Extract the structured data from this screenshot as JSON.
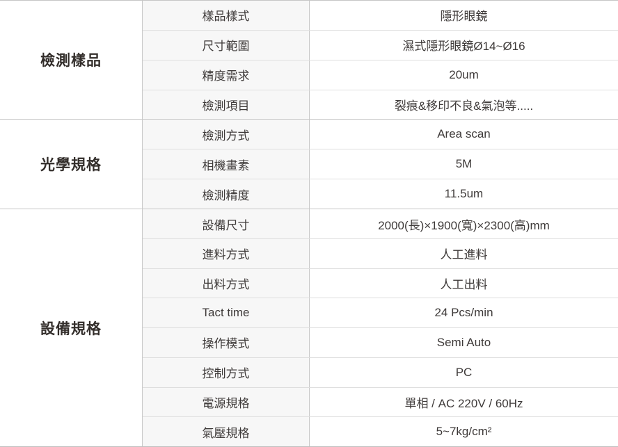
{
  "table": {
    "sections": [
      {
        "category": "檢測樣品",
        "rows": [
          {
            "label": "樣品樣式",
            "value": "隱形眼鏡"
          },
          {
            "label": "尺寸範圍",
            "value": "濕式隱形眼鏡Ø14~Ø16"
          },
          {
            "label": "精度需求",
            "value": "20um"
          },
          {
            "label": "檢測項目",
            "value": "裂痕&移印不良&氣泡等....."
          }
        ]
      },
      {
        "category": "光學規格",
        "rows": [
          {
            "label": "檢測方式",
            "value": "Area scan"
          },
          {
            "label": "相機畫素",
            "value": "5M"
          },
          {
            "label": "檢測精度",
            "value": "11.5um"
          }
        ]
      },
      {
        "category": "設備規格",
        "rows": [
          {
            "label": "設備尺寸",
            "value": "2000(長)×1900(寬)×2300(高)mm"
          },
          {
            "label": "進料方式",
            "value": "人工進料"
          },
          {
            "label": "出料方式",
            "value": "人工出料"
          },
          {
            "label": "Tact time",
            "value": "24 Pcs/min"
          },
          {
            "label": "操作模式",
            "value": "Semi Auto"
          },
          {
            "label": "控制方式",
            "value": "PC"
          },
          {
            "label": "電源規格",
            "value": "單相 / AC 220V / 60Hz"
          },
          {
            "label": "氣壓規格",
            "value": "5~7kg/cm²"
          }
        ]
      }
    ]
  },
  "colors": {
    "text": "#3e3a39",
    "category_text": "#332e2b",
    "row_divider": "#dedede",
    "section_divider": "#c6c6c6",
    "label_background": "#f7f7f7",
    "value_background": "#ffffff"
  }
}
